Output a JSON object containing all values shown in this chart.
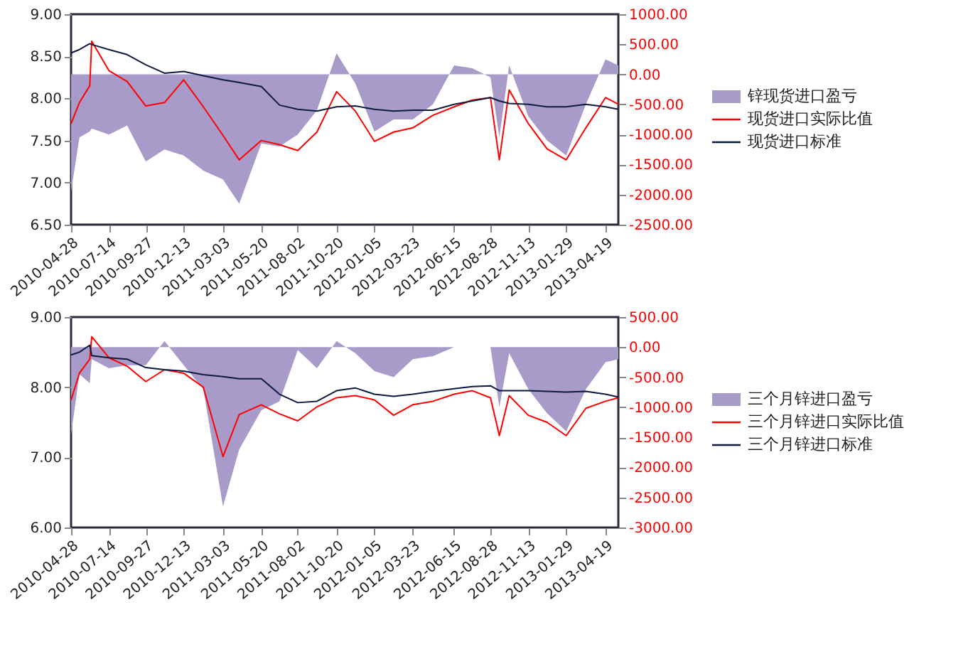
{
  "chart_data": [
    {
      "type": "line",
      "x": [
        "2010-04-28",
        "2010-05-15",
        "2010-06-05",
        "2010-06-09",
        "2010-07-14",
        "2010-08-20",
        "2010-09-27",
        "2010-11-04",
        "2010-12-13",
        "2011-01-22",
        "2011-03-03",
        "2011-04-05",
        "2011-05-20",
        "2011-06-26",
        "2011-08-02",
        "2011-09-10",
        "2011-10-20",
        "2011-11-27",
        "2012-01-05",
        "2012-02-13",
        "2012-03-23",
        "2012-05-03",
        "2012-06-15",
        "2012-07-22",
        "2012-08-28",
        "2012-09-15",
        "2012-10-05",
        "2012-11-13",
        "2012-12-21",
        "2013-01-29",
        "2013-03-10",
        "2013-04-19",
        "2013-05-15"
      ],
      "xlim": [
        "2010-04-28",
        "2013-05-15"
      ],
      "xticks": [
        "2010-04-28",
        "2010-07-14",
        "2010-09-27",
        "2010-12-13",
        "2011-03-03",
        "2011-05-20",
        "2011-08-02",
        "2011-10-20",
        "2012-01-05",
        "2012-03-23",
        "2012-06-15",
        "2012-08-28",
        "2012-11-13",
        "2013-01-29",
        "2013-04-19"
      ],
      "ylim": [
        6.5,
        9
      ],
      "yticks": [
        {
          "value": 6.5,
          "label": "6.50"
        },
        {
          "value": 7,
          "label": "7.00"
        },
        {
          "value": 7.5,
          "label": "7.50"
        },
        {
          "value": 8,
          "label": "8.00"
        },
        {
          "value": 8.5,
          "label": "8.50"
        },
        {
          "value": 9,
          "label": "9.00"
        }
      ],
      "y2lim": [
        -2500,
        1000
      ],
      "y2ticks": [
        {
          "value": -2500,
          "label": "-2500.00"
        },
        {
          "value": -2000,
          "label": "-2000.00"
        },
        {
          "value": -1500,
          "label": "-1500.00"
        },
        {
          "value": -1000,
          "label": "-1000.00"
        },
        {
          "value": -500,
          "label": "-500.00"
        },
        {
          "value": 0,
          "label": "0.00"
        },
        {
          "value": 500,
          "label": "500.00"
        },
        {
          "value": 1000,
          "label": "1000.00"
        }
      ],
      "legend": "right",
      "series": [
        {
          "name": "锌现货进口盈亏",
          "type": "area",
          "axis": "y2",
          "color": "#a99bc9",
          "values": [
            -1950,
            -1050,
            -950,
            -900,
            -1000,
            -850,
            -1450,
            -1250,
            -1350,
            -1600,
            -1750,
            -2150,
            -1150,
            -1200,
            -1000,
            -600,
            350,
            -150,
            -950,
            -750,
            -750,
            -500,
            150,
            100,
            -50,
            -1050,
            150,
            -700,
            -1100,
            -1350,
            -500,
            250,
            150
          ]
        },
        {
          "name": "现货进口实际比值",
          "color": "#ff0000",
          "values": [
            7.7,
            7.95,
            8.15,
            8.68,
            8.33,
            8.2,
            7.91,
            7.95,
            8.22,
            7.9,
            7.56,
            7.27,
            7.5,
            7.45,
            7.38,
            7.6,
            8.08,
            7.85,
            7.49,
            7.6,
            7.65,
            7.8,
            7.9,
            7.98,
            8.01,
            7.27,
            8.1,
            7.7,
            7.4,
            7.27,
            7.65,
            8.01,
            7.93
          ]
        },
        {
          "name": "现货进口标准",
          "color": "#0d1b3e",
          "values": [
            8.54,
            8.58,
            8.65,
            8.64,
            8.58,
            8.52,
            8.4,
            8.3,
            8.32,
            8.27,
            8.22,
            8.19,
            8.14,
            7.92,
            7.87,
            7.85,
            7.9,
            7.91,
            7.87,
            7.85,
            7.86,
            7.86,
            7.93,
            7.97,
            8.01,
            7.97,
            7.94,
            7.93,
            7.9,
            7.9,
            7.93,
            7.9,
            7.87
          ]
        }
      ]
    },
    {
      "type": "line",
      "x": [
        "2010-04-28",
        "2010-05-15",
        "2010-06-05",
        "2010-06-09",
        "2010-07-14",
        "2010-08-20",
        "2010-09-27",
        "2010-11-04",
        "2010-12-13",
        "2011-01-22",
        "2011-03-03",
        "2011-04-05",
        "2011-05-20",
        "2011-06-26",
        "2011-08-02",
        "2011-09-10",
        "2011-10-20",
        "2011-11-27",
        "2012-01-05",
        "2012-02-13",
        "2012-03-23",
        "2012-05-03",
        "2012-06-15",
        "2012-07-22",
        "2012-08-28",
        "2012-09-15",
        "2012-10-05",
        "2012-11-13",
        "2012-12-21",
        "2013-01-29",
        "2013-03-10",
        "2013-04-19",
        "2013-05-15"
      ],
      "xlim": [
        "2010-04-28",
        "2013-05-15"
      ],
      "xticks": [
        "2010-04-28",
        "2010-07-14",
        "2010-09-27",
        "2010-12-13",
        "2011-03-03",
        "2011-05-20",
        "2011-08-02",
        "2011-10-20",
        "2012-01-05",
        "2012-03-23",
        "2012-06-15",
        "2012-08-28",
        "2012-11-13",
        "2013-01-29",
        "2013-04-19"
      ],
      "ylim": [
        6,
        9
      ],
      "yticks": [
        {
          "value": 6,
          "label": "6.00"
        },
        {
          "value": 7,
          "label": "7.00"
        },
        {
          "value": 8,
          "label": "8.00"
        },
        {
          "value": 9,
          "label": "9.00"
        }
      ],
      "y2lim": [
        -3000,
        500
      ],
      "y2ticks": [
        {
          "value": -3000,
          "label": "-3000.00"
        },
        {
          "value": -2500,
          "label": "-2500.00"
        },
        {
          "value": -2000,
          "label": "-2000.00"
        },
        {
          "value": -1500,
          "label": "-1500.00"
        },
        {
          "value": -1000,
          "label": "-1000.00"
        },
        {
          "value": -500,
          "label": "-500.00"
        },
        {
          "value": 0,
          "label": "0.00"
        },
        {
          "value": 500,
          "label": "500.00"
        }
      ],
      "legend": "right",
      "series": [
        {
          "name": "三个月锌进口盈亏",
          "type": "area",
          "axis": "y2",
          "color": "#a99bc9",
          "values": [
            -1450,
            -450,
            -600,
            -200,
            -350,
            -300,
            -300,
            100,
            -300,
            -700,
            -2650,
            -1700,
            -1050,
            -900,
            -50,
            -350,
            100,
            -100,
            -400,
            -500,
            -200,
            -150,
            0,
            0,
            0,
            -1000,
            -100,
            -700,
            -1100,
            -1400,
            -700,
            -250,
            -200
          ]
        },
        {
          "name": "三个月锌进口实际比值",
          "color": "#ff0000",
          "values": [
            7.82,
            8.2,
            8.4,
            8.72,
            8.42,
            8.3,
            8.08,
            8.25,
            8.2,
            8.0,
            7.01,
            7.61,
            7.75,
            7.62,
            7.52,
            7.72,
            7.85,
            7.88,
            7.82,
            7.6,
            7.75,
            7.8,
            7.9,
            7.95,
            7.85,
            7.31,
            7.88,
            7.6,
            7.5,
            7.31,
            7.7,
            7.8,
            7.85
          ]
        },
        {
          "name": "三个月锌进口标准",
          "color": "#0d1b3e",
          "values": [
            8.46,
            8.5,
            8.6,
            8.45,
            8.42,
            8.4,
            8.28,
            8.25,
            8.23,
            8.18,
            8.15,
            8.12,
            8.12,
            7.9,
            7.78,
            7.8,
            7.95,
            7.99,
            7.9,
            7.87,
            7.9,
            7.94,
            7.98,
            8.01,
            8.02,
            7.95,
            7.95,
            7.95,
            7.94,
            7.93,
            7.94,
            7.9,
            7.86
          ]
        }
      ]
    }
  ]
}
